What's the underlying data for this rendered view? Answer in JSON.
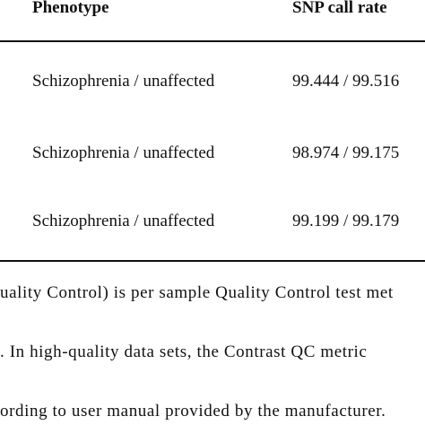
{
  "table": {
    "headers": {
      "phenotype": "Phenotype",
      "snp_call_rate": "SNP call rate"
    },
    "rows": [
      {
        "phenotype": "Schizophrenia / unaffected",
        "snp_call_rate": "99.444 / 99.516"
      },
      {
        "phenotype": "Schizophrenia / unaffected",
        "snp_call_rate": "98.974 / 99.175"
      },
      {
        "phenotype": "Schizophrenia / unaffected",
        "snp_call_rate": "99.199 / 99.179"
      }
    ]
  },
  "footnote": {
    "line1": "uality Control) is per sample Quality Control test met",
    "line2": ". In high-quality data sets, the Contrast QC metric",
    "line3": "ording to user manual provided by the manufacturer."
  }
}
